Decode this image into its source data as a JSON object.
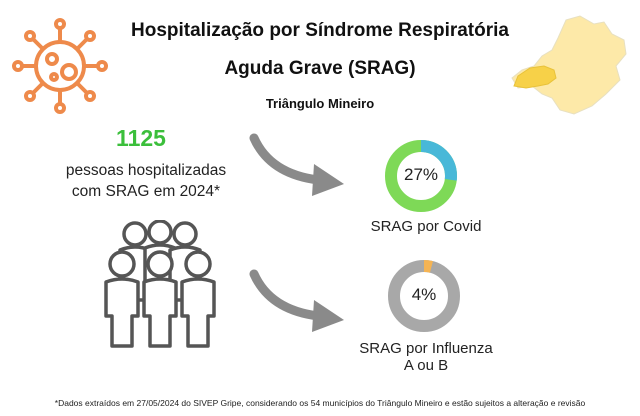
{
  "header": {
    "title_line1": "Hospitalização por Síndrome Respiratória",
    "title_line2": "Aguda Grave (SRAG)",
    "subtitle": "Triângulo Mineiro"
  },
  "summary": {
    "count": "1125",
    "description_line1": "pessoas hospitalizadas",
    "description_line2": "com SRAG em 2024*"
  },
  "indicators": [
    {
      "percent_label": "27%",
      "percent_value": 27,
      "caption_line1": "SRAG por Covid",
      "caption_line2": "",
      "ring_color": "#7ed957",
      "highlight_color": "#48b8d8"
    },
    {
      "percent_label": "4%",
      "percent_value": 4,
      "caption_line1": "SRAG por Influenza",
      "caption_line2": "A ou B",
      "ring_color": "#a8a8a8",
      "highlight_color": "#f5b454"
    }
  ],
  "footnote": "*Dados extraídos em 27/05/2024 do SIVEP Gripe, considerando os 54 municípios do Triângulo Mineiro e estão sujeitos a alteração e revisão",
  "colors": {
    "virus": "#ee8a4b",
    "map_fill": "#fde9a8",
    "map_highlight": "#f7d148",
    "arrow": "#8a8a8a",
    "people": "#555555",
    "count": "#3bbf3b"
  },
  "icons": {
    "virus": "virus-icon",
    "map": "minas-gerais-map-icon",
    "people": "people-group-icon",
    "arrow": "curved-arrow-icon"
  }
}
